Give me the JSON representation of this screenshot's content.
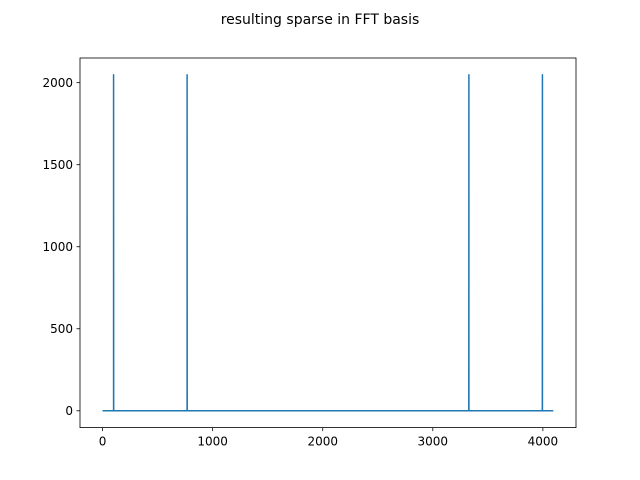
{
  "chart_data": {
    "type": "line",
    "title": "resulting sparse in FFT basis",
    "xlabel": "",
    "ylabel": "",
    "xlim": [
      -205,
      4301
    ],
    "ylim": [
      -102.4,
      2150.4
    ],
    "xticks": [
      0,
      1000,
      2000,
      3000,
      4000
    ],
    "xtick_labels": [
      "0",
      "1000",
      "2000",
      "3000",
      "4000"
    ],
    "yticks": [
      0,
      500,
      1000,
      1500,
      2000
    ],
    "ytick_labels": [
      "0",
      "500",
      "1000",
      "1500",
      "2000"
    ],
    "grid": false,
    "n_points": 4096,
    "baseline": 0,
    "series": [
      {
        "color": "#1f77b4",
        "x": [
          0,
          100,
          100,
          101,
          102,
          768,
          768,
          769,
          770,
          3326,
          3327,
          3328,
          3328,
          3994,
          3995,
          3996,
          3996,
          4095
        ],
        "y": [
          0,
          0,
          2048,
          0,
          0,
          0,
          2048,
          0,
          0,
          0,
          0,
          2048,
          0,
          0,
          0,
          2048,
          0,
          0
        ]
      }
    ]
  }
}
